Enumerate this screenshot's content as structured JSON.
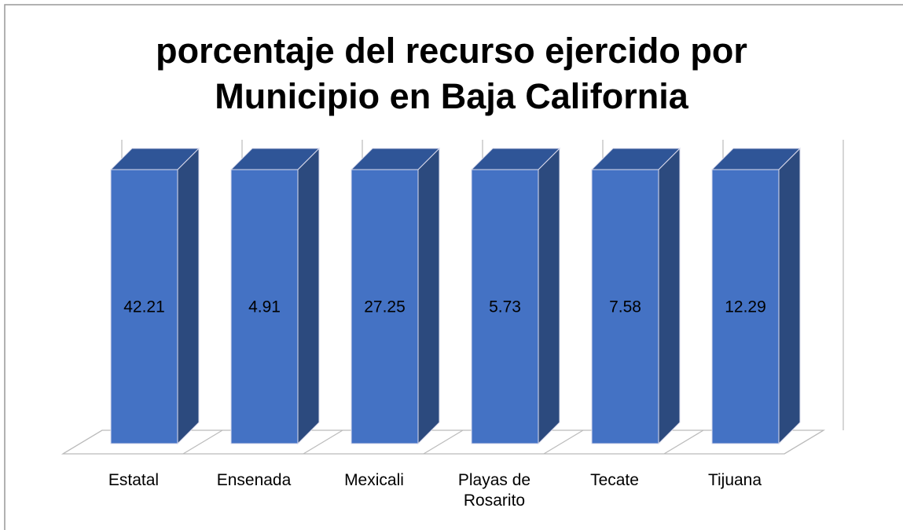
{
  "chart_data": {
    "type": "bar100",
    "title": [
      "porcentaje del recurso ejercido por",
      "Municipio en Baja California"
    ],
    "categories": [
      "Estatal",
      "Ensenada",
      "Mexicali",
      "Playas de Rosarito",
      "Tecate",
      "Tijuana"
    ],
    "values": [
      42.21,
      4.91,
      27.25,
      5.73,
      7.58,
      12.29
    ],
    "color": "#4472c4"
  }
}
